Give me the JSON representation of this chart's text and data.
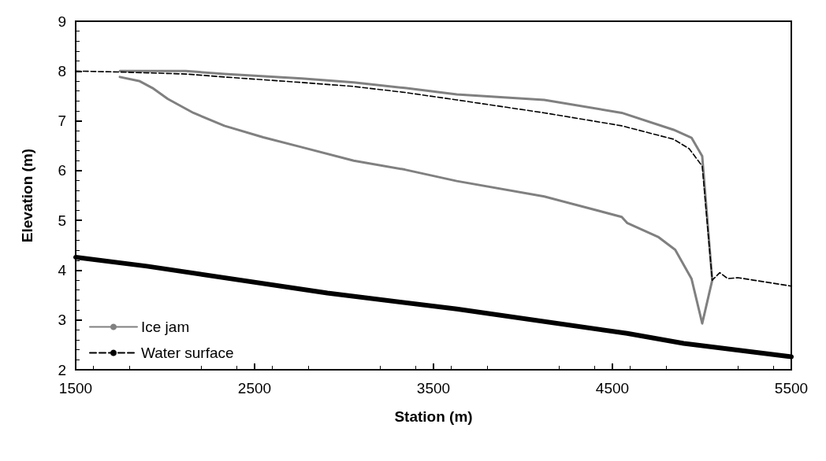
{
  "chart_data": {
    "type": "line",
    "xlabel": "Station (m)",
    "ylabel": "Elevation (m)",
    "xlim": [
      1500,
      5500
    ],
    "xticks": [
      1500,
      2500,
      3500,
      4500,
      5500
    ],
    "ylim": [
      2,
      9
    ],
    "yticks": [
      2,
      3,
      4,
      5,
      6,
      7,
      8,
      9
    ],
    "grid": false,
    "legend": "bottom left",
    "marker": "none",
    "series": [
      {
        "name": "Ice jam",
        "color": "#808080",
        "line_style": "solid",
        "x": [
          1747,
          2115,
          2331,
          2764,
          3054,
          3340,
          3630,
          4119,
          4552,
          4842,
          4942,
          5002,
          5058,
          5002,
          4942,
          4851,
          4755,
          4582,
          4552,
          4119,
          3630,
          3340,
          3054,
          2764,
          2548,
          2331,
          2158,
          2015,
          1929,
          1855,
          1747
        ],
        "values": [
          8.0,
          8.0,
          7.94,
          7.85,
          7.77,
          7.66,
          7.53,
          7.42,
          7.16,
          6.82,
          6.66,
          6.29,
          3.8,
          2.93,
          3.83,
          4.41,
          4.67,
          4.95,
          5.07,
          5.48,
          5.79,
          6.02,
          6.2,
          6.47,
          6.67,
          6.9,
          7.16,
          7.44,
          7.66,
          7.8,
          7.88
        ]
      },
      {
        "name": "Water surface",
        "color": "#000000",
        "line_style": "dashed",
        "x": [
          1500,
          1747,
          2115,
          2331,
          2764,
          3054,
          3340,
          3630,
          4119,
          4552,
          4842,
          4929,
          5002,
          5058,
          5100,
          5145,
          5201,
          5288,
          5500
        ],
        "values": [
          8.0,
          7.98,
          7.94,
          7.88,
          7.77,
          7.69,
          7.57,
          7.42,
          7.16,
          6.9,
          6.63,
          6.44,
          6.09,
          3.8,
          3.95,
          3.83,
          3.85,
          3.8,
          3.68
        ]
      },
      {
        "color": "#000000",
        "line_style": "solid",
        "x": [
          1500,
          1898,
          2907,
          3630,
          4582,
          4898,
          5500
        ],
        "values": [
          4.26,
          4.08,
          3.54,
          3.22,
          2.73,
          2.53,
          2.26
        ]
      }
    ]
  }
}
